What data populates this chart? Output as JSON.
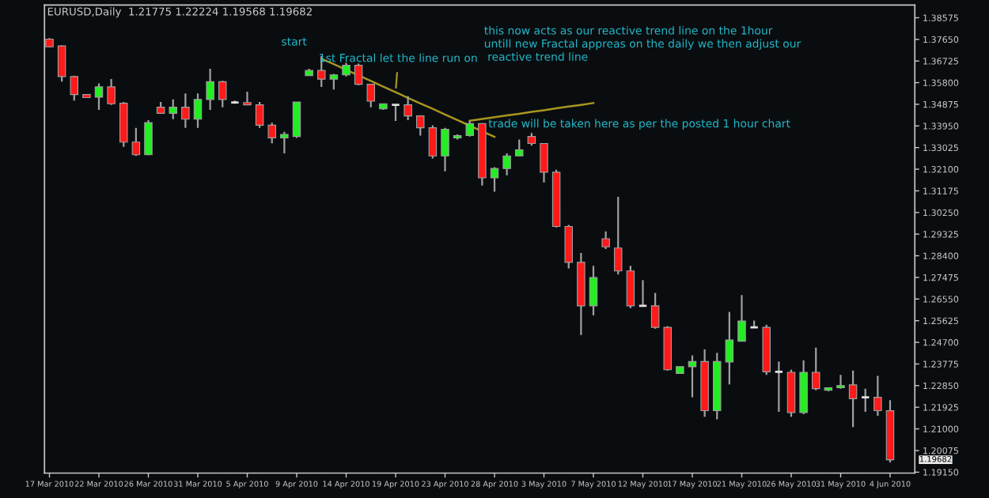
{
  "chart_data": {
    "type": "candlestick",
    "title": "EURUSD,Daily  1.21775 1.22224 1.19568 1.19682",
    "categories": [
      "17 Mar 2010",
      null,
      null,
      null,
      "22 Mar 2010",
      null,
      null,
      null,
      "26 Mar 2010",
      null,
      null,
      null,
      "31 Mar 2010",
      null,
      null,
      null,
      "5 Apr 2010",
      null,
      null,
      null,
      "9 Apr 2010",
      null,
      null,
      null,
      "14 Apr 2010",
      null,
      null,
      null,
      "19 Apr 2010",
      null,
      null,
      null,
      "23 Apr 2010",
      null,
      null,
      null,
      "28 Apr 2010",
      null,
      null,
      null,
      "3 May 2010",
      null,
      null,
      null,
      "7 May 2010",
      null,
      null,
      null,
      "12 May 2010",
      null,
      null,
      null,
      "17 May 2010",
      null,
      null,
      null,
      "21 May 2010",
      null,
      null,
      null,
      "26 May 2010",
      null,
      null,
      null,
      "31 May 2010",
      null,
      null,
      null,
      "4 Jun 2010"
    ],
    "ohlc": [
      [
        1.3766,
        1.377,
        1.3731,
        1.3733
      ],
      [
        1.3737,
        1.3739,
        1.3584,
        1.3606
      ],
      [
        1.3606,
        1.361,
        1.3503,
        1.3529
      ],
      [
        1.3529,
        1.3529,
        1.3516,
        1.3516
      ],
      [
        1.3518,
        1.3577,
        1.3464,
        1.3562
      ],
      [
        1.3562,
        1.3595,
        1.3485,
        1.349
      ],
      [
        1.3492,
        1.3497,
        1.3306,
        1.3326
      ],
      [
        1.3326,
        1.3387,
        1.3267,
        1.3272
      ],
      [
        1.3272,
        1.342,
        1.327,
        1.3409
      ],
      [
        1.3475,
        1.3497,
        1.3449,
        1.3449
      ],
      [
        1.3449,
        1.3508,
        1.3424,
        1.3475
      ],
      [
        1.3475,
        1.3534,
        1.3387,
        1.3424
      ],
      [
        1.3424,
        1.3534,
        1.3387,
        1.3508
      ],
      [
        1.3508,
        1.3639,
        1.3464,
        1.3584
      ],
      [
        1.3584,
        1.3588,
        1.3475,
        1.3508
      ],
      [
        1.3495,
        1.3503,
        1.349,
        1.3495
      ],
      [
        1.3495,
        1.3541,
        1.3485,
        1.3485
      ],
      [
        1.3485,
        1.3497,
        1.3387,
        1.3398
      ],
      [
        1.3398,
        1.3409,
        1.3321,
        1.3344
      ],
      [
        1.3344,
        1.337,
        1.3278,
        1.3359
      ],
      [
        1.335,
        1.3497,
        1.3344,
        1.3497
      ],
      [
        1.361,
        1.3639,
        1.361,
        1.3632
      ],
      [
        1.3632,
        1.3693,
        1.3562,
        1.3595
      ],
      [
        1.3595,
        1.3617,
        1.3551,
        1.3613
      ],
      [
        1.3613,
        1.3665,
        1.3606,
        1.3654
      ],
      [
        1.3654,
        1.3661,
        1.3569,
        1.3573
      ],
      [
        1.3573,
        1.3573,
        1.3475,
        1.3501
      ],
      [
        1.3468,
        1.349,
        1.3464,
        1.349
      ],
      [
        1.3485,
        1.3485,
        1.3416,
        1.3485
      ],
      [
        1.3485,
        1.3523,
        1.342,
        1.3438
      ],
      [
        1.3438,
        1.3438,
        1.3354,
        1.3387
      ],
      [
        1.3387,
        1.3398,
        1.3256,
        1.3267
      ],
      [
        1.3267,
        1.3387,
        1.3201,
        1.3381
      ],
      [
        1.3344,
        1.3359,
        1.3337,
        1.3354
      ],
      [
        1.3354,
        1.3416,
        1.335,
        1.3405
      ],
      [
        1.3405,
        1.3405,
        1.314,
        1.3173
      ],
      [
        1.3173,
        1.3219,
        1.3114,
        1.3213
      ],
      [
        1.3213,
        1.3278,
        1.3184,
        1.3267
      ],
      [
        1.3267,
        1.3337,
        1.3267,
        1.3293
      ],
      [
        1.335,
        1.3365,
        1.3311,
        1.332
      ],
      [
        1.332,
        1.3321,
        1.3154,
        1.3197
      ],
      [
        1.3197,
        1.3208,
        1.2961,
        1.2965
      ],
      [
        1.2965,
        1.2972,
        1.2786,
        1.2812
      ],
      [
        1.2812,
        1.2852,
        1.2501,
        1.2626
      ],
      [
        1.2626,
        1.2797,
        1.2585,
        1.2747
      ],
      [
        1.2913,
        1.2944,
        1.2869,
        1.2878
      ],
      [
        1.2873,
        1.3092,
        1.276,
        1.2775
      ],
      [
        1.2775,
        1.2797,
        1.2616,
        1.2626
      ],
      [
        1.2626,
        1.2736,
        1.2626,
        1.2626
      ],
      [
        1.2626,
        1.2681,
        1.2528,
        1.2534
      ],
      [
        1.2534,
        1.2539,
        1.2349,
        1.2353
      ],
      [
        1.2337,
        1.2366,
        1.2337,
        1.2366
      ],
      [
        1.2366,
        1.2414,
        1.2235,
        1.2388
      ],
      [
        1.2388,
        1.244,
        1.2152,
        1.2178
      ],
      [
        1.2178,
        1.2425,
        1.2141,
        1.2388
      ],
      [
        1.2386,
        1.26,
        1.229,
        1.248
      ],
      [
        1.2475,
        1.2672,
        1.2475,
        1.2561
      ],
      [
        1.2534,
        1.2563,
        1.2534,
        1.2534
      ],
      [
        1.2534,
        1.2545,
        1.2331,
        1.2344
      ],
      [
        1.2344,
        1.2388,
        1.2173,
        1.2344
      ],
      [
        1.2342,
        1.2353,
        1.2152,
        1.217
      ],
      [
        1.217,
        1.2393,
        1.2163,
        1.2342
      ],
      [
        1.2342,
        1.2447,
        1.2265,
        1.2272
      ],
      [
        1.2265,
        1.2276,
        1.2261,
        1.2276
      ],
      [
        1.2276,
        1.2331,
        1.2272,
        1.2285
      ],
      [
        1.2288,
        1.2349,
        1.2108,
        1.2229
      ],
      [
        1.2235,
        1.2272,
        1.2173,
        1.2235
      ],
      [
        1.2235,
        1.2327,
        1.2156,
        1.2178
      ],
      [
        1.21775,
        1.22224,
        1.19568,
        1.19682
      ]
    ],
    "colors": [
      "#ff1a1a",
      "#ff1a1a",
      "#ff1a1a",
      "#ff1a1a",
      "#22ee22",
      "#ff1a1a",
      "#ff1a1a",
      "#ff1a1a",
      "#22ee22",
      "#ff1a1a",
      "#22ee22",
      "#ff1a1a",
      "#22ee22",
      "#22ee22",
      "#ff1a1a",
      "#e0e0e0",
      "#ff1a1a",
      "#ff1a1a",
      "#ff1a1a",
      "#22ee22",
      "#22ee22",
      "#22ee22",
      "#ff1a1a",
      "#22ee22",
      "#22ee22",
      "#ff1a1a",
      "#ff1a1a",
      "#22ee22",
      "#e0e0e0",
      "#ff1a1a",
      "#ff1a1a",
      "#ff1a1a",
      "#22ee22",
      "#22ee22",
      "#22ee22",
      "#ff1a1a",
      "#22ee22",
      "#22ee22",
      "#22ee22",
      "#ff1a1a",
      "#ff1a1a",
      "#ff1a1a",
      "#ff1a1a",
      "#ff1a1a",
      "#22ee22",
      "#ff1a1a",
      "#ff1a1a",
      "#ff1a1a",
      "#e0e0e0",
      "#ff1a1a",
      "#ff1a1a",
      "#22ee22",
      "#22ee22",
      "#ff1a1a",
      "#22ee22",
      "#22ee22",
      "#22ee22",
      "#e0e0e0",
      "#ff1a1a",
      "#e0e0e0",
      "#ff1a1a",
      "#22ee22",
      "#ff1a1a",
      "#22ee22",
      "#22ee22",
      "#ff1a1a",
      "#e0e0e0",
      "#ff1a1a",
      "#ff1a1a"
    ],
    "series": [
      {
        "type": "line",
        "color": "#a8961e",
        "values": [
          null,
          null,
          null,
          null,
          null,
          null,
          null,
          null,
          null,
          null,
          null,
          null,
          null,
          null,
          null,
          null,
          null,
          null,
          null,
          null,
          null,
          null,
          1.3682,
          1.3659,
          1.3635,
          1.3611,
          1.3587,
          1.3563,
          1.3539,
          1.3515,
          1.3491,
          1.3468,
          1.3444,
          1.342,
          1.3396,
          1.3372,
          1.3348,
          null,
          null,
          null,
          null,
          null,
          null,
          null,
          null,
          null,
          null,
          null,
          null,
          null,
          null,
          null,
          null,
          null,
          null,
          null,
          null,
          null,
          null,
          null,
          null,
          null,
          null,
          null,
          null,
          null,
          null,
          null,
          null
        ]
      },
      {
        "type": "line",
        "color": "#a8961e",
        "values": [
          null,
          null,
          null,
          null,
          null,
          null,
          null,
          null,
          null,
          null,
          null,
          null,
          null,
          null,
          null,
          null,
          null,
          null,
          null,
          null,
          null,
          null,
          null,
          null,
          null,
          null,
          null,
          null,
          null,
          null,
          null,
          null,
          null,
          null,
          1.3417,
          1.3425,
          1.3432,
          1.344,
          1.3447,
          1.3455,
          1.3462,
          1.347,
          1.3478,
          1.3485,
          1.3493,
          null,
          null,
          null,
          null,
          null,
          null,
          null,
          null,
          null,
          null,
          null,
          null,
          null,
          null,
          null,
          null,
          null,
          null,
          null,
          null,
          null,
          null,
          null,
          null
        ]
      }
    ],
    "ylim": [
      1.1911,
      1.3912
    ],
    "yticks": [
      {
        "value": 1.38575,
        "label": "1.38575"
      },
      {
        "value": 1.3765,
        "label": "1.37650"
      },
      {
        "value": 1.36725,
        "label": "1.36725"
      },
      {
        "value": 1.358,
        "label": "1.35800"
      },
      {
        "value": 1.34875,
        "label": "1.34875"
      },
      {
        "value": 1.3395,
        "label": "1.33950"
      },
      {
        "value": 1.33025,
        "label": "1.33025"
      },
      {
        "value": 1.321,
        "label": "1.32100"
      },
      {
        "value": 1.31175,
        "label": "1.31175"
      },
      {
        "value": 1.3025,
        "label": "1.30250"
      },
      {
        "value": 1.29325,
        "label": "1.29325"
      },
      {
        "value": 1.284,
        "label": "1.28400"
      },
      {
        "value": 1.27475,
        "label": "1.27475"
      },
      {
        "value": 1.2655,
        "label": "1.26550"
      },
      {
        "value": 1.25625,
        "label": "1.25625"
      },
      {
        "value": 1.247,
        "label": "1.24700"
      },
      {
        "value": 1.23775,
        "label": "1.23775"
      },
      {
        "value": 1.2285,
        "label": "1.22850"
      },
      {
        "value": 1.21925,
        "label": "1.21925"
      },
      {
        "value": 1.21,
        "label": "1.21000"
      },
      {
        "value": 1.20075,
        "label": "1.20075"
      },
      {
        "value": 1.1915,
        "label": "1.19150"
      }
    ],
    "annotations": [
      "start",
      {
        "text": "1st Fractal let the line run on",
        "x": "19 Apr 2010",
        "y": 1.3539
      },
      "this now acts as our reactive trend line on the 1hour\nuntill new Fractal appreas on the daily we then adjust our\n reactive trend line",
      "trade will be taken here as per the posted 1 hour chart",
      "1.19682"
    ],
    "grid": false,
    "legend": false
  }
}
